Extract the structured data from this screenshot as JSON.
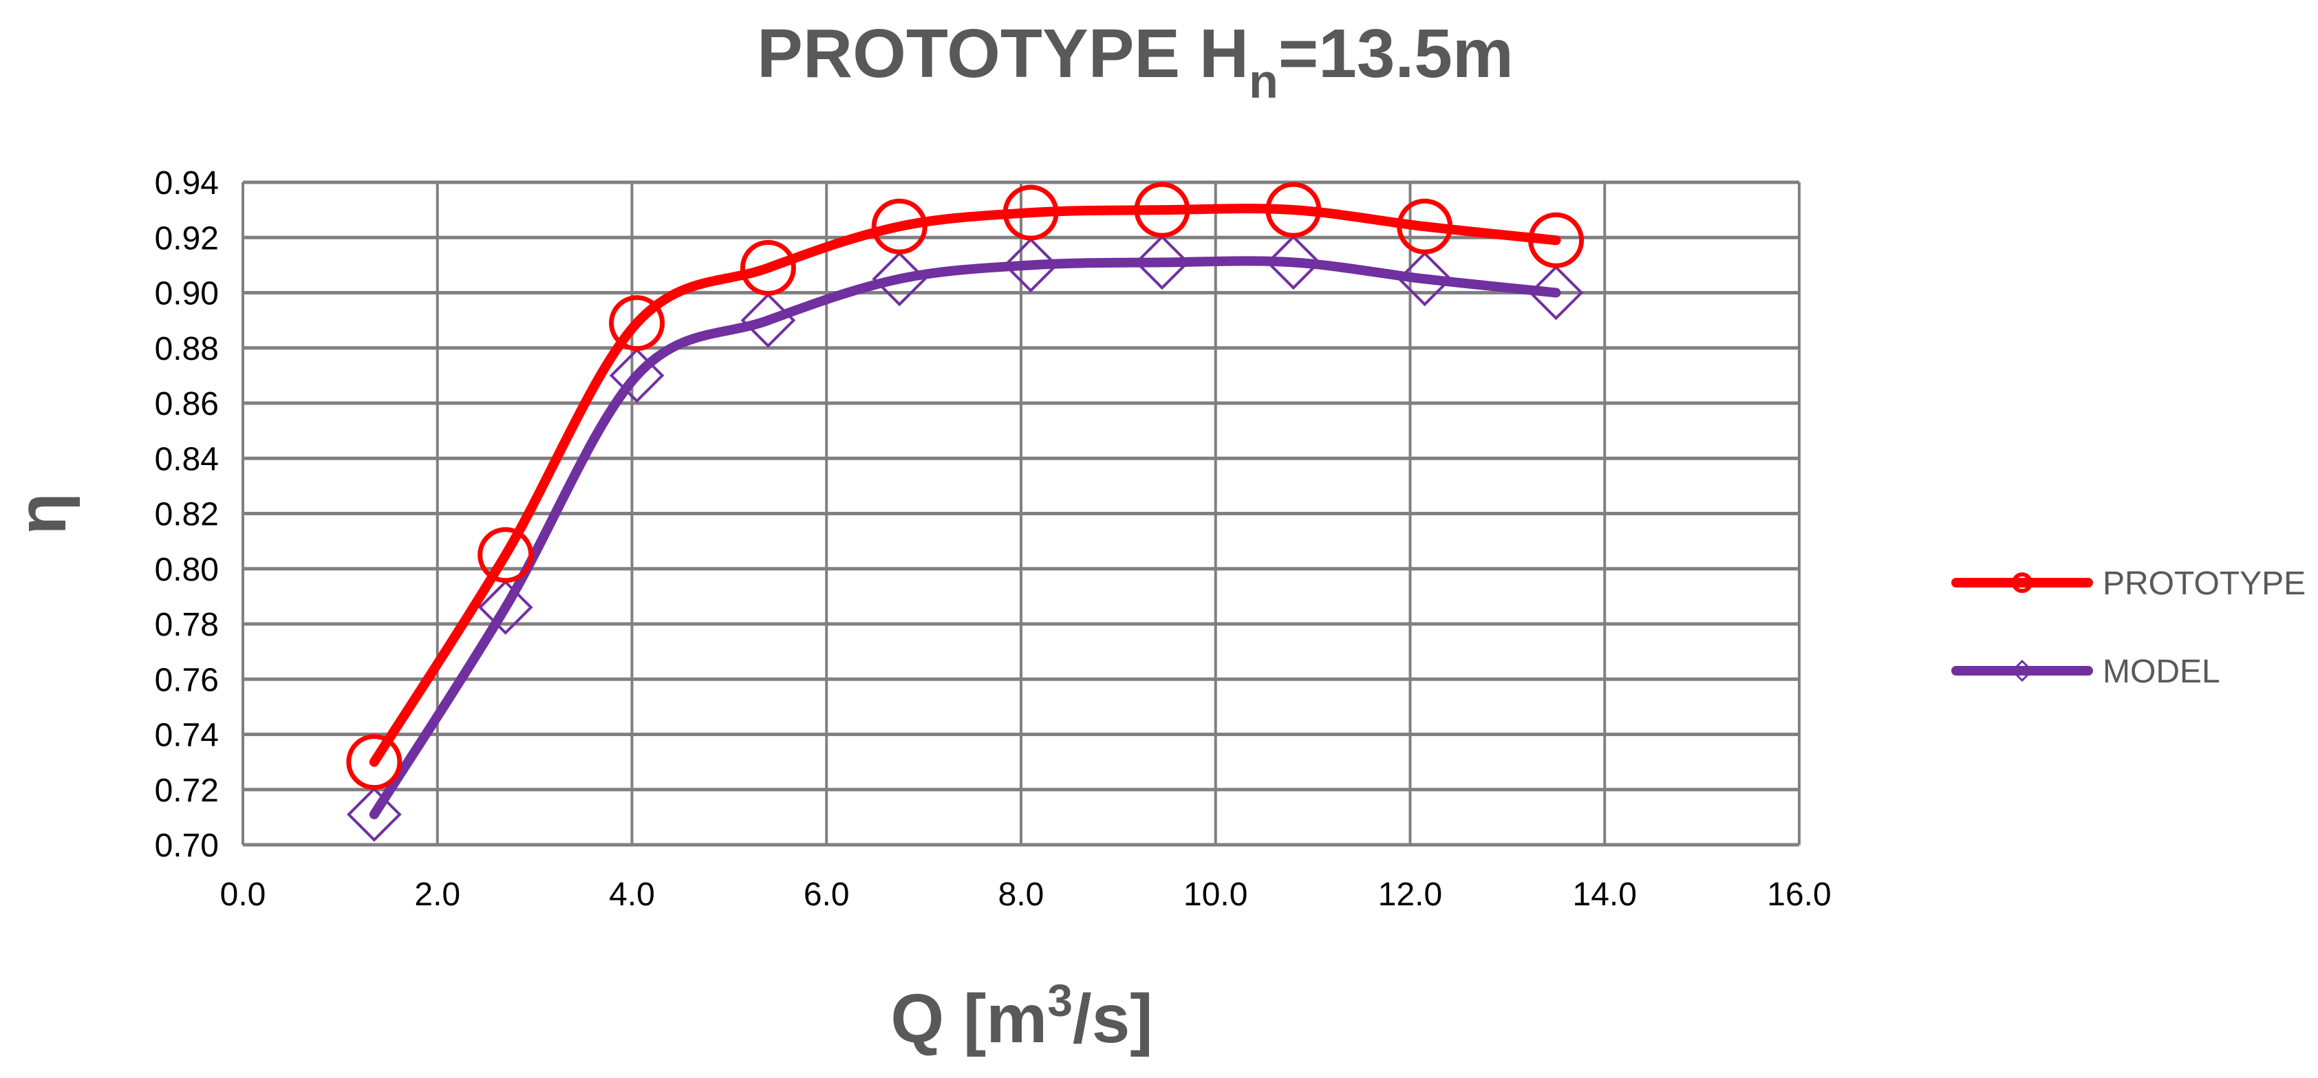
{
  "chart_data": {
    "type": "line",
    "title": {
      "main": "PROTOTYPE H",
      "subscript": "n",
      "suffix": "=13.5m"
    },
    "xlabel": {
      "main": "Q [m",
      "superscript": "3",
      "suffix": "/s]"
    },
    "ylabel": "η",
    "xlim": [
      0,
      16
    ],
    "ylim": [
      0.7,
      0.94
    ],
    "x_ticks": [
      "0.0",
      "2.0",
      "4.0",
      "6.0",
      "8.0",
      "10.0",
      "12.0",
      "14.0",
      "16.0"
    ],
    "y_ticks": [
      "0.94",
      "0.92",
      "0.90",
      "0.88",
      "0.86",
      "0.84",
      "0.82",
      "0.80",
      "0.78",
      "0.76",
      "0.74",
      "0.72",
      "0.70"
    ],
    "grid": true,
    "legend_position": "right",
    "x": [
      1.35,
      2.7,
      4.05,
      5.4,
      6.75,
      8.1,
      9.45,
      10.8,
      12.15,
      13.5
    ],
    "series": [
      {
        "name": "PROTOTYPE",
        "color": "#ff0000",
        "marker": "circle",
        "values": [
          0.73,
          0.805,
          0.889,
          0.909,
          0.924,
          0.929,
          0.93,
          0.93,
          0.924,
          0.919
        ]
      },
      {
        "name": "MODEL",
        "color": "#7030a0",
        "marker": "diamond",
        "values": [
          0.711,
          0.786,
          0.87,
          0.89,
          0.905,
          0.91,
          0.911,
          0.911,
          0.905,
          0.9
        ]
      }
    ]
  }
}
